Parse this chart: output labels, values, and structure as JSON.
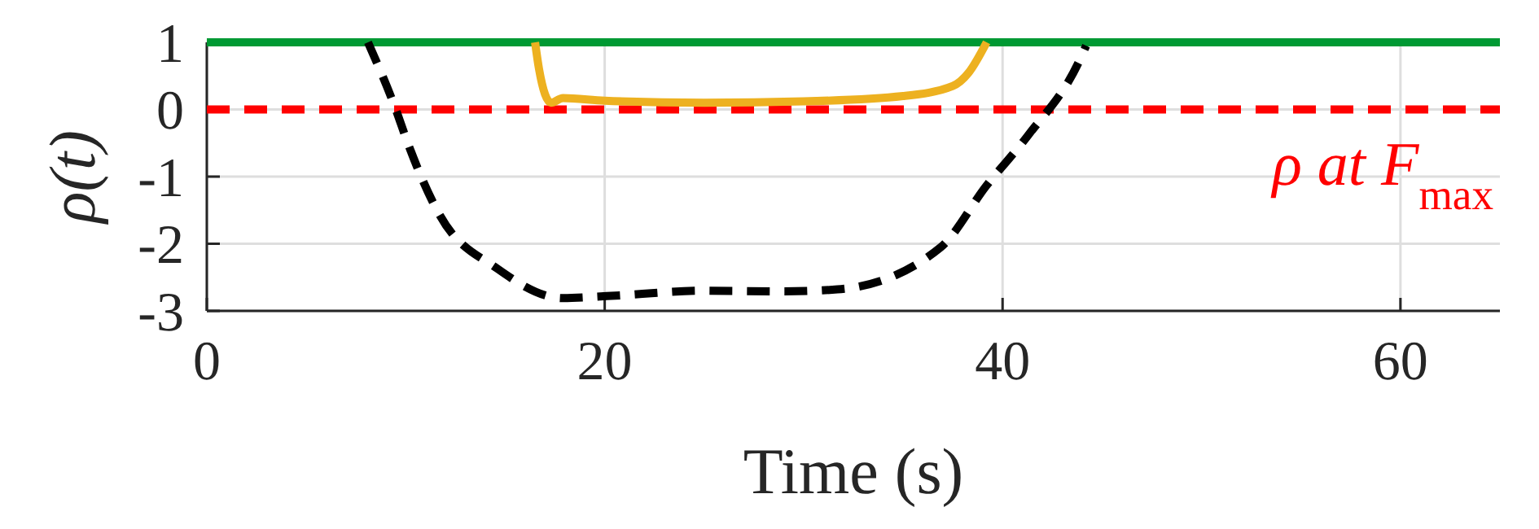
{
  "chart_data": {
    "type": "line",
    "xlabel": "Time (s)",
    "ylabel": "ρ(t)",
    "xlim": [
      0,
      65
    ],
    "ylim": [
      -3,
      1
    ],
    "xticks": [
      0,
      20,
      40,
      60
    ],
    "yticks": [
      -3,
      -2,
      -1,
      0,
      1
    ],
    "grid": true,
    "series": [
      {
        "color": "#009933",
        "line_style": "solid",
        "x": [
          0,
          65
        ],
        "values": [
          1,
          1
        ]
      },
      {
        "color": "#edb120",
        "line_style": "solid",
        "x": [
          16.5,
          16.7,
          17.3,
          17.9,
          20,
          25,
          30,
          35,
          37.5,
          38.3,
          39.2
        ],
        "values": [
          1,
          0.6,
          0.1,
          0.17,
          0.13,
          0.1,
          0.12,
          0.2,
          0.35,
          0.55,
          1
        ]
      },
      {
        "color": "#000000",
        "line_style": "dashed",
        "x": [
          8.1,
          9.5,
          10.1,
          11.7,
          14.6,
          17.9,
          20.1,
          25,
          29,
          31.7,
          36.9,
          39.2,
          41.3,
          43.9,
          44.2
        ],
        "values": [
          1,
          0,
          -0.5,
          -1.57,
          -2.37,
          -2.81,
          -2.78,
          -2.7,
          -2.71,
          -2.68,
          -2.05,
          -1.13,
          -0.38,
          0.75,
          0.95
        ]
      }
    ],
    "ref_lines": [
      {
        "axis": "y",
        "value": 0,
        "label": "ρ at F$_{max}$",
        "color": "#ff0000",
        "line_style": "dashed"
      }
    ]
  }
}
